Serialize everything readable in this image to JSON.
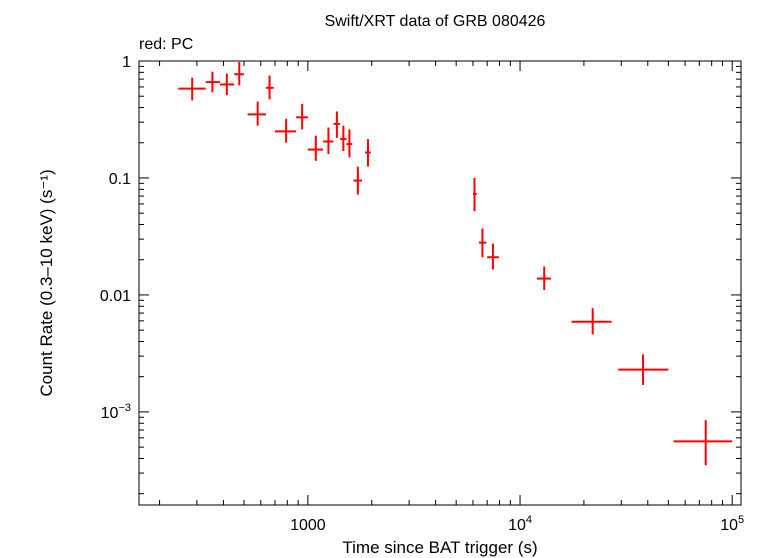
{
  "chart_data": {
    "type": "scatter",
    "title": "Swift/XRT data of GRB 080426",
    "subtitle": "red: PC",
    "xlabel": "Time since BAT trigger (s)",
    "ylabel": "Count Rate (0.3–10 keV) (s⁻¹)",
    "xscale": "log",
    "yscale": "log",
    "xlim": [
      160,
      110000
    ],
    "ylim": [
      0.00016,
      1.0
    ],
    "grid": false,
    "x_ticks": [
      {
        "value": 1000,
        "label": "1000"
      },
      {
        "value": 10000,
        "base": "10",
        "exp": "4"
      },
      {
        "value": 100000,
        "base": "10",
        "exp": "5"
      }
    ],
    "y_ticks": [
      {
        "value": 1,
        "label": "1"
      },
      {
        "value": 0.1,
        "label": "0.1"
      },
      {
        "value": 0.01,
        "label": "0.01"
      },
      {
        "value": 0.001,
        "base": "10",
        "exp": "−3"
      }
    ],
    "series": [
      {
        "name": "PC",
        "color": "#ff0000",
        "points": [
          {
            "x": 285,
            "xlo": 245,
            "xhi": 330,
            "y": 0.58,
            "ylo": 0.46,
            "yhi": 0.72
          },
          {
            "x": 355,
            "xlo": 330,
            "xhi": 385,
            "y": 0.66,
            "ylo": 0.54,
            "yhi": 0.81
          },
          {
            "x": 415,
            "xlo": 385,
            "xhi": 450,
            "y": 0.63,
            "ylo": 0.51,
            "yhi": 0.78
          },
          {
            "x": 475,
            "xlo": 450,
            "xhi": 500,
            "y": 0.77,
            "ylo": 0.62,
            "yhi": 0.98
          },
          {
            "x": 580,
            "xlo": 520,
            "xhi": 635,
            "y": 0.35,
            "ylo": 0.28,
            "yhi": 0.45
          },
          {
            "x": 660,
            "xlo": 635,
            "xhi": 690,
            "y": 0.59,
            "ylo": 0.47,
            "yhi": 0.75
          },
          {
            "x": 790,
            "xlo": 700,
            "xhi": 880,
            "y": 0.25,
            "ylo": 0.2,
            "yhi": 0.32
          },
          {
            "x": 940,
            "xlo": 880,
            "xhi": 1000,
            "y": 0.33,
            "ylo": 0.26,
            "yhi": 0.43
          },
          {
            "x": 1090,
            "xlo": 1000,
            "xhi": 1180,
            "y": 0.175,
            "ylo": 0.14,
            "yhi": 0.23
          },
          {
            "x": 1250,
            "xlo": 1180,
            "xhi": 1320,
            "y": 0.205,
            "ylo": 0.16,
            "yhi": 0.27
          },
          {
            "x": 1370,
            "xlo": 1320,
            "xhi": 1420,
            "y": 0.29,
            "ylo": 0.22,
            "yhi": 0.37
          },
          {
            "x": 1470,
            "xlo": 1420,
            "xhi": 1520,
            "y": 0.215,
            "ylo": 0.17,
            "yhi": 0.28
          },
          {
            "x": 1570,
            "xlo": 1520,
            "xhi": 1620,
            "y": 0.195,
            "ylo": 0.15,
            "yhi": 0.26
          },
          {
            "x": 1720,
            "xlo": 1640,
            "xhi": 1800,
            "y": 0.095,
            "ylo": 0.072,
            "yhi": 0.125
          },
          {
            "x": 1920,
            "xlo": 1860,
            "xhi": 1980,
            "y": 0.165,
            "ylo": 0.125,
            "yhi": 0.215
          },
          {
            "x": 6100,
            "xlo": 6000,
            "xhi": 6250,
            "y": 0.073,
            "ylo": 0.052,
            "yhi": 0.1
          },
          {
            "x": 6650,
            "xlo": 6400,
            "xhi": 6950,
            "y": 0.028,
            "ylo": 0.021,
            "yhi": 0.037
          },
          {
            "x": 7450,
            "xlo": 7000,
            "xhi": 7950,
            "y": 0.021,
            "ylo": 0.0165,
            "yhi": 0.0275
          },
          {
            "x": 13000,
            "xlo": 12000,
            "xhi": 14000,
            "y": 0.0138,
            "ylo": 0.011,
            "yhi": 0.0175
          },
          {
            "x": 22000,
            "xlo": 17500,
            "xhi": 27000,
            "y": 0.0059,
            "ylo": 0.0046,
            "yhi": 0.0077
          },
          {
            "x": 38000,
            "xlo": 29000,
            "xhi": 50000,
            "y": 0.0023,
            "ylo": 0.0017,
            "yhi": 0.0031
          },
          {
            "x": 75000,
            "xlo": 53000,
            "xhi": 100000,
            "y": 0.00056,
            "ylo": 0.00035,
            "yhi": 0.00085
          }
        ]
      }
    ]
  }
}
